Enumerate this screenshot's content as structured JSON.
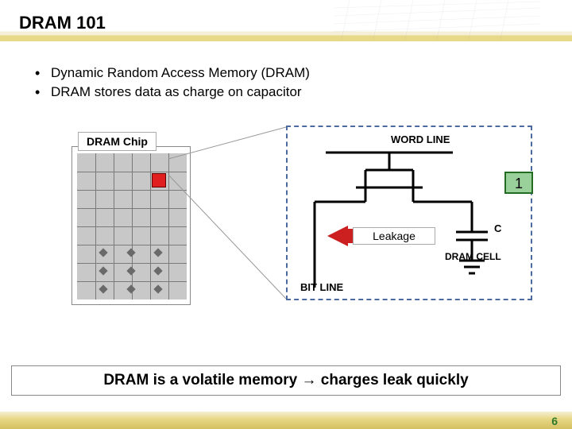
{
  "title": "DRAM 101",
  "bullets": [
    "Dynamic Random Access Memory (DRAM)",
    "DRAM stores data as charge on capacitor"
  ],
  "chip": {
    "label": "DRAM Chip",
    "grid_bg": "#c8c8c8",
    "grid_line": "#7a7a7a",
    "cols": 6,
    "rows": 8,
    "red_cell": {
      "col": 4,
      "row": 1,
      "color": "#e02020"
    },
    "dots": [
      {
        "col": 1,
        "row": 5
      },
      {
        "col": 2.5,
        "row": 5
      },
      {
        "col": 4,
        "row": 5
      },
      {
        "col": 1,
        "row": 6
      },
      {
        "col": 2.5,
        "row": 6
      },
      {
        "col": 4,
        "row": 6
      },
      {
        "col": 1,
        "row": 7
      },
      {
        "col": 2.5,
        "row": 7
      },
      {
        "col": 4,
        "row": 7
      }
    ]
  },
  "cell": {
    "border_color": "#4a6aa0",
    "word_line": "WORD LINE",
    "bit_line": "BIT LINE",
    "cap_label": "C",
    "cell_label": "DRAM CELL",
    "badge_value": "1",
    "badge_bg": "#9ad09a",
    "badge_border": "#246b24",
    "leakage_label": "Leakage",
    "leakage_color": "#cc2020"
  },
  "bottom_text": "DRAM is a volatile memory → charges leak quickly",
  "page_number": "6",
  "colors": {
    "accent_band": "#e8d988",
    "page_num": "#2a7a2a"
  }
}
